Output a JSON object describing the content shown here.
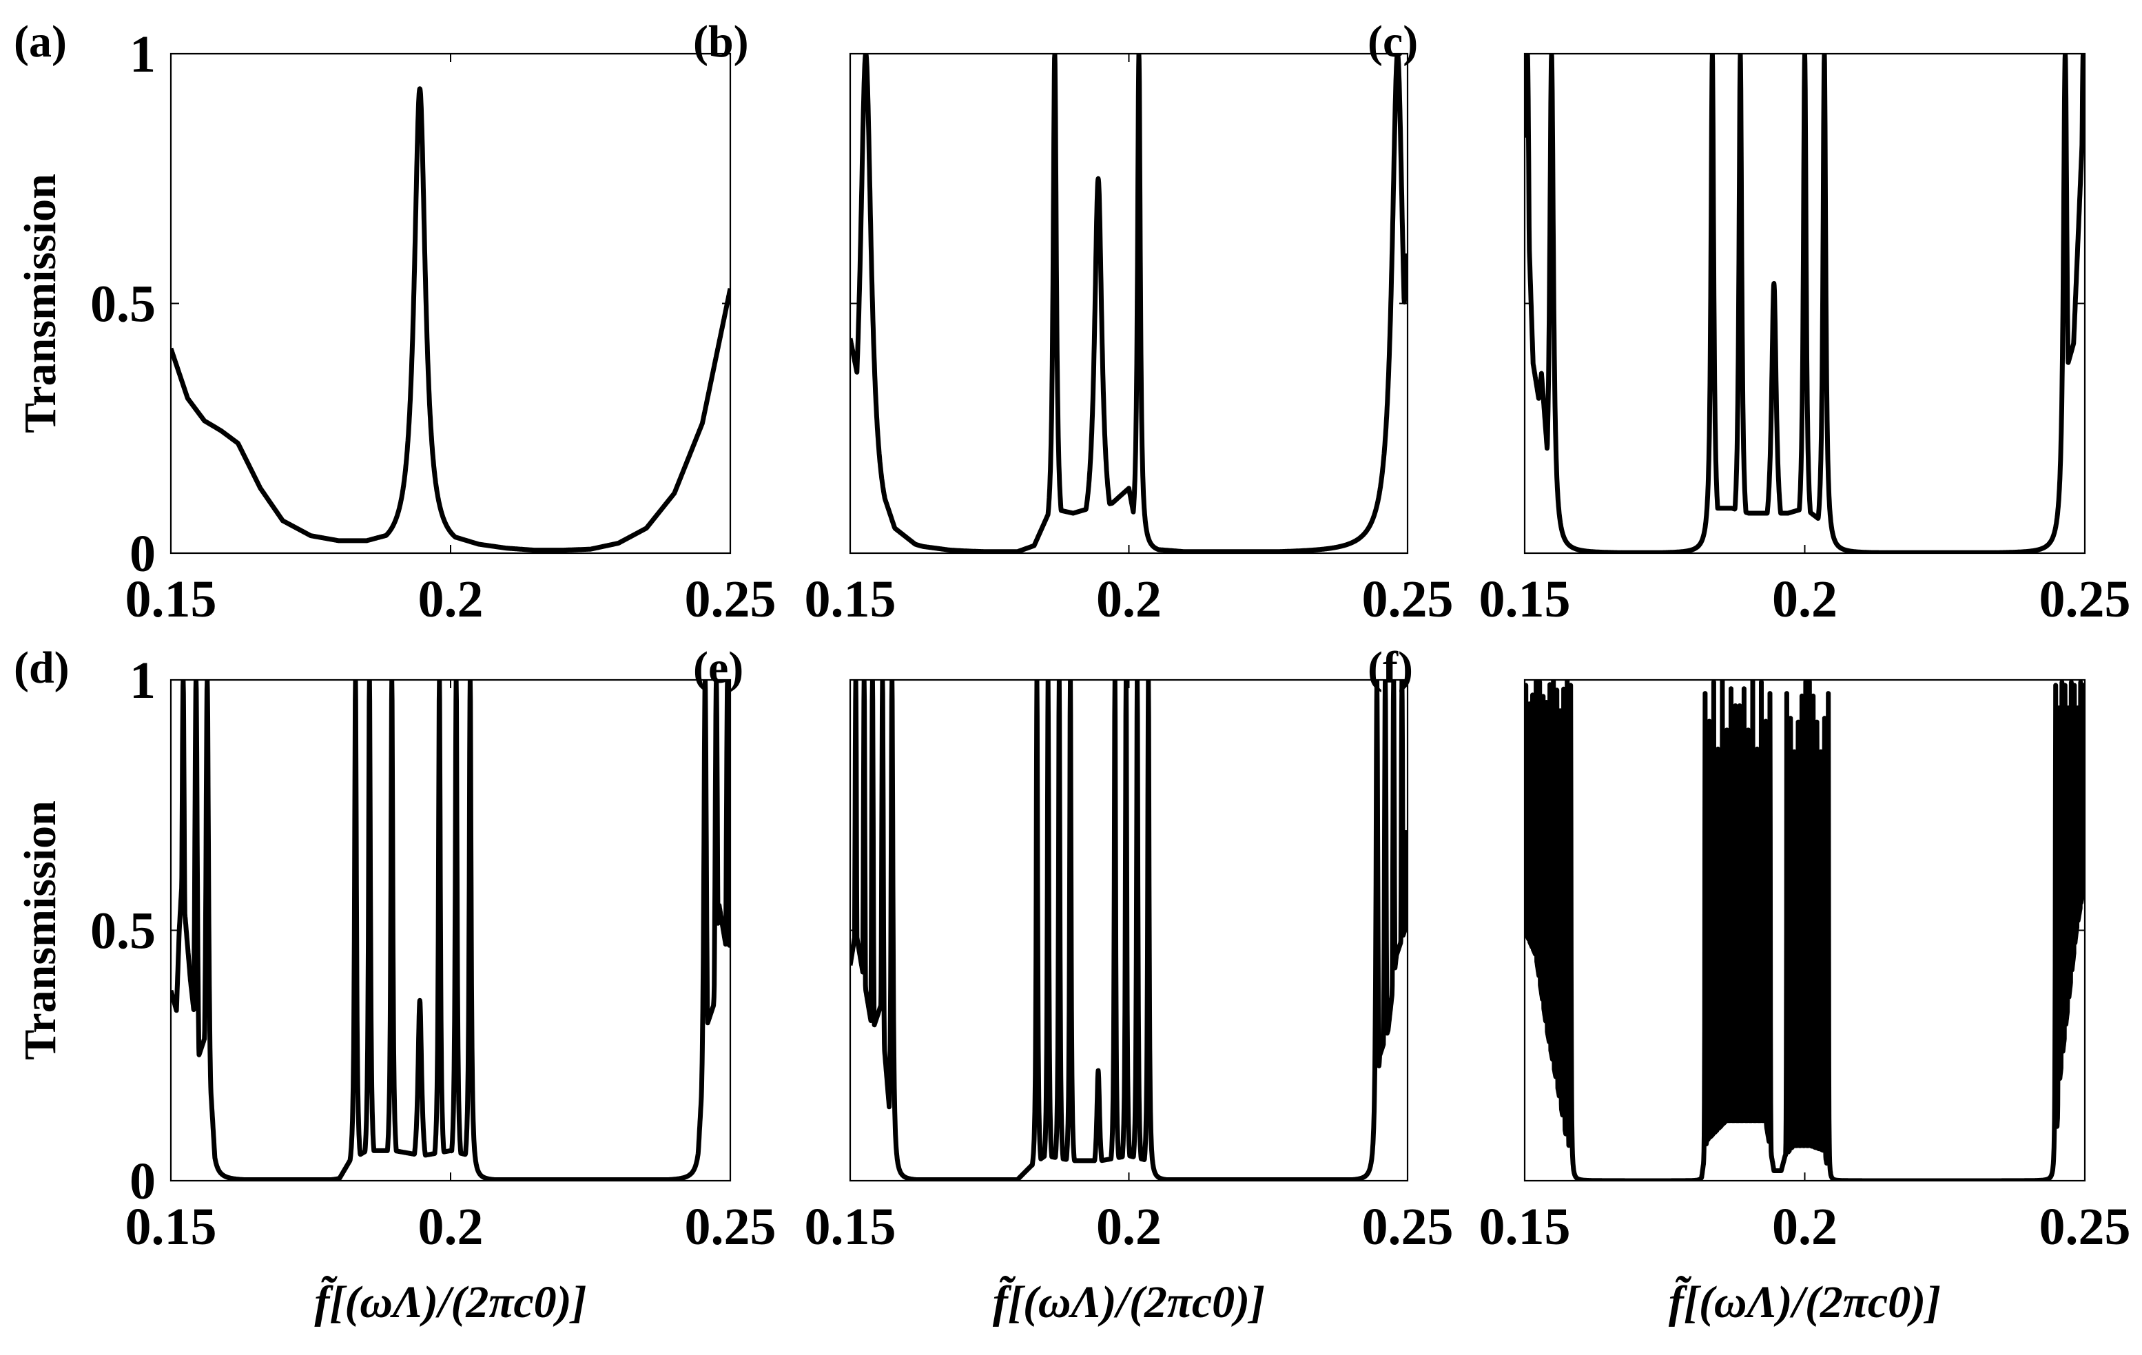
{
  "chart_data": [
    {
      "id": "a",
      "type": "line",
      "panel_label": "(a)",
      "xlabel": "",
      "ylabel": "Transmission",
      "xlim": [
        0.15,
        0.25
      ],
      "ylim": [
        0,
        1
      ],
      "xticks": [
        {
          "v": 0.15,
          "label": "0.15"
        },
        {
          "v": 0.2,
          "label": "0.2"
        },
        {
          "v": 0.25,
          "label": "0.25"
        }
      ],
      "yticks": [
        {
          "v": 0,
          "label": "0"
        },
        {
          "v": 0.5,
          "label": "0.5"
        },
        {
          "v": 1,
          "label": "1"
        }
      ],
      "grid": false,
      "series": [
        {
          "baseline": [
            [
              0.15,
              0.41
            ],
            [
              0.153,
              0.31
            ],
            [
              0.156,
              0.265
            ],
            [
              0.159,
              0.245
            ],
            [
              0.162,
              0.22
            ],
            [
              0.166,
              0.13
            ],
            [
              0.17,
              0.065
            ],
            [
              0.175,
              0.035
            ],
            [
              0.18,
              0.025
            ],
            [
              0.185,
              0.025
            ],
            [
              0.19,
              0.04
            ],
            [
              0.2,
              0.035
            ],
            [
              0.205,
              0.018
            ],
            [
              0.21,
              0.01
            ],
            [
              0.215,
              0.006
            ],
            [
              0.22,
              0.006
            ],
            [
              0.225,
              0.008
            ],
            [
              0.23,
              0.02
            ],
            [
              0.235,
              0.05
            ],
            [
              0.24,
              0.12
            ],
            [
              0.245,
              0.26
            ],
            [
              0.25,
              0.53
            ]
          ],
          "peaks": [
            {
              "x": 0.1945,
              "h": 0.93,
              "w": 0.0012
            }
          ]
        }
      ]
    },
    {
      "id": "b",
      "type": "line",
      "panel_label": "(b)",
      "xlabel": "",
      "ylabel": "",
      "xlim": [
        0.15,
        0.25
      ],
      "ylim": [
        0,
        1
      ],
      "xticks": [
        {
          "v": 0.15,
          "label": "0.15"
        },
        {
          "v": 0.2,
          "label": "0.2"
        },
        {
          "v": 0.25,
          "label": "0.25"
        }
      ],
      "yticks": [
        {
          "v": 0,
          "label": ""
        },
        {
          "v": 0.5,
          "label": ""
        },
        {
          "v": 1,
          "label": ""
        }
      ],
      "grid": false,
      "series": [
        {
          "baseline": [
            [
              0.15,
              0.43
            ],
            [
              0.155,
              0.15
            ],
            [
              0.158,
              0.05
            ],
            [
              0.162,
              0.015
            ],
            [
              0.17,
              0.003
            ],
            [
              0.18,
              0.003
            ],
            [
              0.183,
              0.015
            ],
            [
              0.186,
              0.09
            ],
            [
              0.19,
              0.08
            ],
            [
              0.193,
              0.09
            ],
            [
              0.197,
              0.1
            ],
            [
              0.2,
              0.13
            ],
            [
              0.202,
              0.01
            ],
            [
              0.21,
              0.003
            ],
            [
              0.24,
              0.003
            ],
            [
              0.244,
              0.02
            ],
            [
              0.247,
              0.1
            ],
            [
              0.25,
              0.6
            ]
          ],
          "peaks": [
            {
              "x": 0.1528,
              "h": 1.0,
              "w": 0.0012
            },
            {
              "x": 0.1867,
              "h": 1.0,
              "w": 0.00035
            },
            {
              "x": 0.1945,
              "h": 0.75,
              "w": 0.0008
            },
            {
              "x": 0.2018,
              "h": 1.0,
              "w": 0.0003
            },
            {
              "x": 0.2482,
              "h": 1.0,
              "w": 0.0012
            }
          ]
        }
      ]
    },
    {
      "id": "c",
      "type": "line",
      "panel_label": "(c)",
      "xlabel": "",
      "ylabel": "",
      "xlim": [
        0.15,
        0.25
      ],
      "ylim": [
        0,
        1
      ],
      "xticks": [
        {
          "v": 0.15,
          "label": "0.15"
        },
        {
          "v": 0.2,
          "label": "0.2"
        },
        {
          "v": 0.25,
          "label": "0.25"
        }
      ],
      "yticks": [
        {
          "v": 0,
          "label": ""
        },
        {
          "v": 0.5,
          "label": ""
        },
        {
          "v": 1,
          "label": ""
        }
      ],
      "grid": false,
      "series": [
        {
          "baseline": [
            [
              0.15,
              1.0
            ],
            [
              0.1505,
              0.72
            ],
            [
              0.1515,
              0.38
            ],
            [
              0.1525,
              0.31
            ],
            [
              0.153,
              0.36
            ],
            [
              0.155,
              0.06
            ],
            [
              0.158,
              0.004
            ],
            [
              0.165,
              0.001
            ],
            [
              0.18,
              0.001
            ],
            [
              0.1825,
              0.015
            ],
            [
              0.184,
              0.09
            ],
            [
              0.187,
              0.09
            ],
            [
              0.19,
              0.08
            ],
            [
              0.193,
              0.08
            ],
            [
              0.197,
              0.08
            ],
            [
              0.2,
              0.09
            ],
            [
              0.2035,
              0.06
            ],
            [
              0.2045,
              0.002
            ],
            [
              0.215,
              0.001
            ],
            [
              0.243,
              0.001
            ],
            [
              0.245,
              0.04
            ],
            [
              0.247,
              0.38
            ],
            [
              0.248,
              0.42
            ],
            [
              0.25,
              0.95
            ]
          ],
          "peaks": [
            {
              "x": 0.1505,
              "h": 1.0,
              "w": 0.0004
            },
            {
              "x": 0.1548,
              "h": 1.0,
              "w": 0.0004
            },
            {
              "x": 0.1835,
              "h": 1.0,
              "w": 0.0003
            },
            {
              "x": 0.1885,
              "h": 1.0,
              "w": 0.0003
            },
            {
              "x": 0.1945,
              "h": 0.54,
              "w": 0.0005
            },
            {
              "x": 0.2,
              "h": 1.0,
              "w": 0.0003
            },
            {
              "x": 0.2035,
              "h": 1.0,
              "w": 0.0003
            },
            {
              "x": 0.2465,
              "h": 1.0,
              "w": 0.0004
            },
            {
              "x": 0.2497,
              "h": 1.0,
              "w": 0.0004
            }
          ]
        }
      ]
    },
    {
      "id": "d",
      "type": "line",
      "panel_label": "(d)",
      "xlabel": "f̃[(ωΛ)/(2πc0)]",
      "ylabel": "Transmission",
      "xlim": [
        0.15,
        0.25
      ],
      "ylim": [
        0,
        1
      ],
      "xticks": [
        {
          "v": 0.15,
          "label": "0.15"
        },
        {
          "v": 0.2,
          "label": "0.2"
        },
        {
          "v": 0.25,
          "label": "0.25"
        }
      ],
      "yticks": [
        {
          "v": 0,
          "label": "0"
        },
        {
          "v": 0.5,
          "label": "0.5"
        },
        {
          "v": 1,
          "label": "1"
        }
      ],
      "grid": false,
      "series": [
        {
          "baseline": [
            [
              0.15,
              0.38
            ],
            [
              0.151,
              0.34
            ],
            [
              0.1515,
              0.5
            ],
            [
              0.152,
              0.6
            ],
            [
              0.1535,
              0.4
            ],
            [
              0.155,
              0.25
            ],
            [
              0.1565,
              0.3
            ],
            [
              0.158,
              0.02
            ],
            [
              0.16,
              0.002
            ],
            [
              0.18,
              0.002
            ],
            [
              0.182,
              0.04
            ],
            [
              0.185,
              0.06
            ],
            [
              0.19,
              0.06
            ],
            [
              0.195,
              0.05
            ],
            [
              0.2,
              0.06
            ],
            [
              0.2035,
              0.05
            ],
            [
              0.2045,
              0.002
            ],
            [
              0.215,
              0.002
            ],
            [
              0.244,
              0.002
            ],
            [
              0.2455,
              0.3
            ],
            [
              0.247,
              0.35
            ],
            [
              0.248,
              0.55
            ],
            [
              0.2495,
              0.45
            ],
            [
              0.25,
              0.48
            ]
          ],
          "peaks": [
            {
              "x": 0.1522,
              "h": 1.0,
              "w": 0.0003
            },
            {
              "x": 0.1545,
              "h": 1.0,
              "w": 0.0003
            },
            {
              "x": 0.1565,
              "h": 1.0,
              "w": 0.0003
            },
            {
              "x": 0.183,
              "h": 1.0,
              "w": 0.0002
            },
            {
              "x": 0.1855,
              "h": 1.0,
              "w": 0.0002
            },
            {
              "x": 0.1895,
              "h": 1.0,
              "w": 0.0002
            },
            {
              "x": 0.1945,
              "h": 0.36,
              "w": 0.0004
            },
            {
              "x": 0.198,
              "h": 1.0,
              "w": 0.0002
            },
            {
              "x": 0.201,
              "h": 1.0,
              "w": 0.0002
            },
            {
              "x": 0.2035,
              "h": 1.0,
              "w": 0.0002
            },
            {
              "x": 0.2455,
              "h": 1.0,
              "w": 0.0003
            },
            {
              "x": 0.2475,
              "h": 1.0,
              "w": 0.0003
            },
            {
              "x": 0.2495,
              "h": 1.0,
              "w": 0.0003
            }
          ]
        }
      ]
    },
    {
      "id": "e",
      "type": "line",
      "panel_label": "(e)",
      "xlabel": "f̃[(ωΛ)/(2πc0)]",
      "ylabel": "",
      "xlim": [
        0.15,
        0.25
      ],
      "ylim": [
        0,
        1
      ],
      "xticks": [
        {
          "v": 0.15,
          "label": "0.15"
        },
        {
          "v": 0.2,
          "label": "0.2"
        },
        {
          "v": 0.25,
          "label": "0.25"
        }
      ],
      "yticks": [
        {
          "v": 0,
          "label": ""
        },
        {
          "v": 0.5,
          "label": ""
        },
        {
          "v": 1,
          "label": ""
        }
      ],
      "grid": false,
      "series": [
        {
          "baseline": [
            [
              0.15,
              0.43
            ],
            [
              0.151,
              0.5
            ],
            [
              0.1525,
              0.4
            ],
            [
              0.154,
              0.3
            ],
            [
              0.1555,
              0.35
            ],
            [
              0.1575,
              0.08
            ],
            [
              0.159,
              0.002
            ],
            [
              0.18,
              0.002
            ],
            [
              0.1825,
              0.03
            ],
            [
              0.185,
              0.05
            ],
            [
              0.19,
              0.04
            ],
            [
              0.195,
              0.04
            ],
            [
              0.2,
              0.05
            ],
            [
              0.2035,
              0.04
            ],
            [
              0.2045,
              0.002
            ],
            [
              0.215,
              0.002
            ],
            [
              0.2435,
              0.002
            ],
            [
              0.245,
              0.25
            ],
            [
              0.2465,
              0.3
            ],
            [
              0.248,
              0.45
            ],
            [
              0.2495,
              0.5
            ],
            [
              0.25,
              0.7
            ]
          ],
          "peaks": [
            {
              "x": 0.151,
              "h": 1.0,
              "w": 0.0002
            },
            {
              "x": 0.1525,
              "h": 1.0,
              "w": 0.0002
            },
            {
              "x": 0.154,
              "h": 1.0,
              "w": 0.0002
            },
            {
              "x": 0.1558,
              "h": 1.0,
              "w": 0.0002
            },
            {
              "x": 0.1575,
              "h": 1.0,
              "w": 0.0002
            },
            {
              "x": 0.1835,
              "h": 1.0,
              "w": 0.00015
            },
            {
              "x": 0.1855,
              "h": 1.0,
              "w": 0.00015
            },
            {
              "x": 0.1875,
              "h": 1.0,
              "w": 0.00015
            },
            {
              "x": 0.1895,
              "h": 1.0,
              "w": 0.00015
            },
            {
              "x": 0.1945,
              "h": 0.22,
              "w": 0.0003
            },
            {
              "x": 0.1975,
              "h": 1.0,
              "w": 0.00015
            },
            {
              "x": 0.1995,
              "h": 1.0,
              "w": 0.00015
            },
            {
              "x": 0.2015,
              "h": 1.0,
              "w": 0.00015
            },
            {
              "x": 0.2035,
              "h": 1.0,
              "w": 0.00015
            },
            {
              "x": 0.2445,
              "h": 1.0,
              "w": 0.0002
            },
            {
              "x": 0.246,
              "h": 1.0,
              "w": 0.0002
            },
            {
              "x": 0.2475,
              "h": 1.0,
              "w": 0.0002
            },
            {
              "x": 0.249,
              "h": 1.0,
              "w": 0.0002
            }
          ]
        }
      ]
    },
    {
      "id": "f",
      "type": "line",
      "panel_label": "(f)",
      "xlabel": "f̃[(ωΛ)/(2πc0)]",
      "ylabel": "",
      "xlim": [
        0.15,
        0.25
      ],
      "ylim": [
        0,
        1
      ],
      "xticks": [
        {
          "v": 0.15,
          "label": "0.15"
        },
        {
          "v": 0.2,
          "label": "0.2"
        },
        {
          "v": 0.25,
          "label": "0.25"
        }
      ],
      "yticks": [
        {
          "v": 0,
          "label": ""
        },
        {
          "v": 0.5,
          "label": ""
        },
        {
          "v": 1,
          "label": ""
        }
      ],
      "grid": false,
      "series": [
        {
          "baseline": [
            [
              0.15,
              0.5
            ],
            [
              0.152,
              0.45
            ],
            [
              0.154,
              0.3
            ],
            [
              0.156,
              0.18
            ],
            [
              0.158,
              0.05
            ],
            [
              0.1585,
              0.0
            ],
            [
              0.1815,
              0.0
            ],
            [
              0.1825,
              0.08
            ],
            [
              0.186,
              0.12
            ],
            [
              0.19,
              0.12
            ],
            [
              0.193,
              0.12
            ],
            [
              0.1945,
              0.02
            ],
            [
              0.1958,
              0.02
            ],
            [
              0.1965,
              0.05
            ],
            [
              0.198,
              0.07
            ],
            [
              0.201,
              0.07
            ],
            [
              0.2035,
              0.06
            ],
            [
              0.2045,
              0.0
            ],
            [
              0.2445,
              0.0
            ],
            [
              0.2455,
              0.2
            ],
            [
              0.247,
              0.35
            ],
            [
              0.2485,
              0.5
            ],
            [
              0.25,
              0.6
            ]
          ],
          "bands": [
            {
              "x0": 0.1502,
              "x1": 0.1582,
              "n": 14,
              "w": 8e-05
            },
            {
              "x0": 0.1822,
              "x1": 0.1938,
              "n": 16,
              "w": 5e-05
            },
            {
              "x0": 0.1968,
              "x1": 0.2042,
              "n": 12,
              "w": 5e-05
            },
            {
              "x0": 0.2448,
              "x1": 0.2498,
              "n": 10,
              "w": 8e-05
            }
          ]
        }
      ]
    }
  ]
}
